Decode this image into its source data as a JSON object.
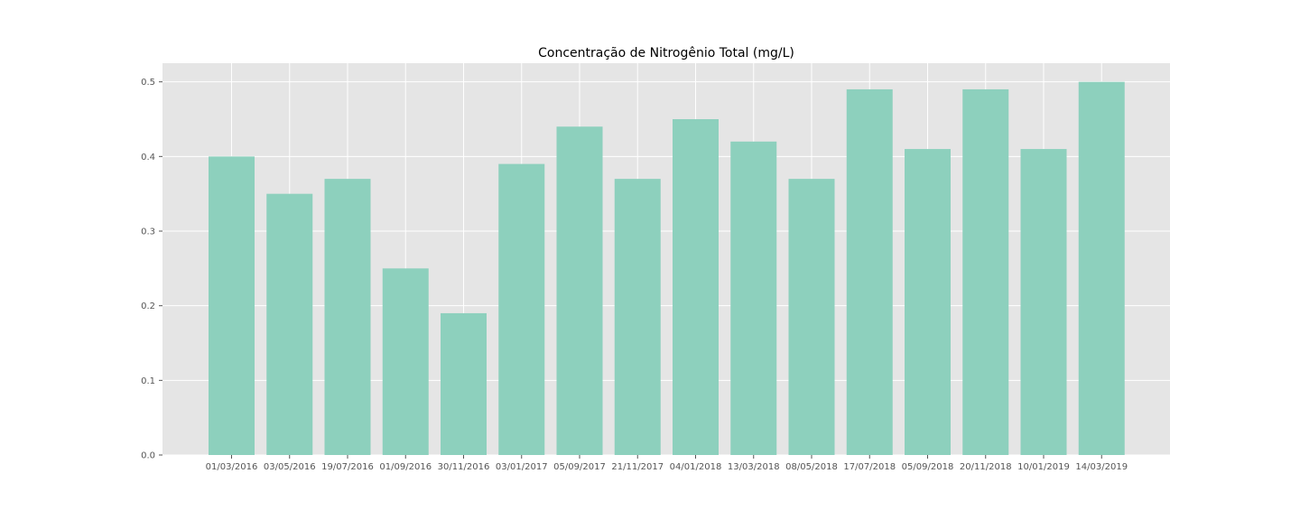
{
  "chart_data": {
    "type": "bar",
    "title": "Concentração de Nitrogênio Total (mg/L)",
    "xlabel": "",
    "ylabel": "",
    "categories": [
      "01/03/2016",
      "03/05/2016",
      "19/07/2016",
      "01/09/2016",
      "30/11/2016",
      "03/01/2017",
      "05/09/2017",
      "21/11/2017",
      "04/01/2018",
      "13/03/2018",
      "08/05/2018",
      "17/07/2018",
      "05/09/2018",
      "20/11/2018",
      "10/01/2019",
      "14/03/2019"
    ],
    "values": [
      0.4,
      0.35,
      0.37,
      0.25,
      0.19,
      0.39,
      0.44,
      0.37,
      0.45,
      0.42,
      0.37,
      0.49,
      0.41,
      0.49,
      0.41,
      0.5
    ],
    "ylim": [
      0,
      0.525
    ],
    "yticks": [
      "0.0",
      "0.1",
      "0.2",
      "0.3",
      "0.4",
      "0.5"
    ],
    "grid": true,
    "legend": "none",
    "colors": {
      "bar": "#8dd0bd",
      "plot_background": "#e5e5e5",
      "grid": "#ffffff",
      "tick_text": "#555555",
      "title_text": "#000000"
    }
  }
}
